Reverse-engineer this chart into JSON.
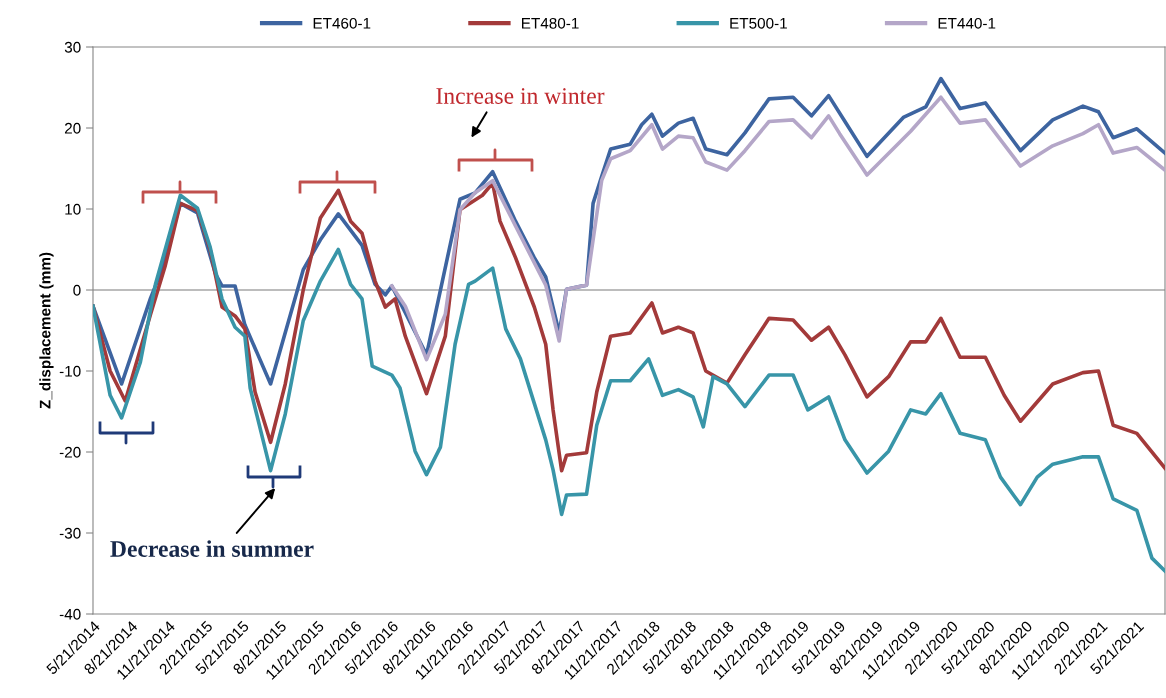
{
  "chart_data": {
    "type": "line",
    "ylabel": "Z_displacement (mm)",
    "ylim": [
      -40,
      30
    ],
    "yticks": [
      -40,
      -30,
      -20,
      -10,
      0,
      10,
      20,
      30
    ],
    "xlim": [
      "2014-05-21",
      "2021-07-29"
    ],
    "xticks": [
      {
        "value": "2014-05-21",
        "label": "5/21/2014"
      },
      {
        "value": "2014-08-21",
        "label": "8/21/2014"
      },
      {
        "value": "2014-11-21",
        "label": "11/21/2014"
      },
      {
        "value": "2015-02-21",
        "label": "2/21/2015"
      },
      {
        "value": "2015-05-21",
        "label": "5/21/2015"
      },
      {
        "value": "2015-08-21",
        "label": "8/21/2015"
      },
      {
        "value": "2015-11-21",
        "label": "11/21/2015"
      },
      {
        "value": "2016-02-21",
        "label": "2/21/2016"
      },
      {
        "value": "2016-05-21",
        "label": "5/21/2016"
      },
      {
        "value": "2016-08-21",
        "label": "8/21/2016"
      },
      {
        "value": "2016-11-21",
        "label": "11/21/2016"
      },
      {
        "value": "2017-02-21",
        "label": "2/21/2017"
      },
      {
        "value": "2017-05-21",
        "label": "5/21/2017"
      },
      {
        "value": "2017-08-21",
        "label": "8/21/2017"
      },
      {
        "value": "2017-11-21",
        "label": "11/21/2017"
      },
      {
        "value": "2018-02-21",
        "label": "2/21/2018"
      },
      {
        "value": "2018-05-21",
        "label": "5/21/2018"
      },
      {
        "value": "2018-08-21",
        "label": "8/21/2018"
      },
      {
        "value": "2018-11-21",
        "label": "11/21/2018"
      },
      {
        "value": "2019-02-21",
        "label": "2/21/2019"
      },
      {
        "value": "2019-05-21",
        "label": "5/21/2019"
      },
      {
        "value": "2019-08-21",
        "label": "8/21/2019"
      },
      {
        "value": "2019-11-21",
        "label": "11/21/2019"
      },
      {
        "value": "2020-02-21",
        "label": "2/21/2020"
      },
      {
        "value": "2020-05-21",
        "label": "5/21/2020"
      },
      {
        "value": "2020-08-21",
        "label": "8/21/2020"
      },
      {
        "value": "2020-11-21",
        "label": "11/21/2020"
      },
      {
        "value": "2021-02-21",
        "label": "2/21/2021"
      },
      {
        "value": "2021-05-21",
        "label": "5/21/2021"
      }
    ],
    "ref_lines": [
      {
        "axis": "y",
        "value": 0,
        "color": "#a6a6a6"
      }
    ],
    "legend": "top",
    "grid": false,
    "marker": "none",
    "line_style": "solid",
    "annotations": [
      "Increase in winter",
      "Decrease in summer"
    ],
    "series": [
      {
        "name": "ET460-1",
        "color": "#3d64a0",
        "x": [
          "2014-05-21",
          "2014-07-30",
          "2014-10-09",
          "2014-11-02",
          "2014-12-21",
          "2015-02-01",
          "2015-03-17",
          "2015-04-02",
          "2015-05-04",
          "2015-05-28",
          "2015-07-30",
          "2015-10-18",
          "2015-11-29",
          "2016-01-12",
          "2016-03-10",
          "2016-04-11",
          "2016-05-06",
          "2016-05-22",
          "2016-08-15",
          "2016-11-05",
          "2016-12-12",
          "2017-01-24",
          "2017-03-21",
          "2017-05-06",
          "2017-06-03",
          "2017-07-06",
          "2017-07-24",
          "2017-09-11",
          "2017-09-27",
          "2017-10-18",
          "2017-11-09",
          "2017-12-27",
          "2018-01-24",
          "2018-02-18",
          "2018-03-16",
          "2018-04-24",
          "2018-05-30",
          "2018-06-30",
          "2018-08-21",
          "2018-10-04",
          "2018-12-02",
          "2019-01-30",
          "2019-03-16",
          "2019-04-27",
          "2019-06-06",
          "2019-07-30",
          "2019-10-27",
          "2019-12-21",
          "2020-01-27",
          "2020-03-14",
          "2020-05-15",
          "2020-08-09",
          "2020-10-27",
          "2021-01-09",
          "2021-02-16",
          "2021-03-24",
          "2021-05-21",
          "2021-07-29"
        ],
        "values": [
          -2,
          -11.6,
          -1,
          2,
          10.7,
          9.5,
          2,
          0.5,
          0.5,
          -4.3,
          -11.6,
          2.5,
          6.2,
          9.4,
          5.5,
          0.7,
          -0.6,
          0.5,
          -8,
          11.2,
          12,
          14.6,
          8.5,
          4,
          1.6,
          -5.3,
          0.1,
          0.6,
          10.7,
          14,
          17.4,
          18,
          20.4,
          21.7,
          19,
          20.6,
          21.2,
          17.4,
          16.7,
          19.4,
          23.6,
          23.8,
          21.5,
          24,
          20.8,
          16.5,
          21.3,
          22.6,
          26.1,
          22.4,
          23.1,
          17.2,
          21,
          22.7,
          22,
          18.8,
          19.9,
          16.9
        ]
      },
      {
        "name": "ET480-1",
        "color": "#a33a3a",
        "x": [
          "2014-05-21",
          "2014-07-02",
          "2014-08-08",
          "2014-10-09",
          "2014-11-14",
          "2014-12-21",
          "2015-02-01",
          "2015-03-04",
          "2015-04-02",
          "2015-05-04",
          "2015-05-28",
          "2015-06-22",
          "2015-07-30",
          "2015-09-04",
          "2015-10-18",
          "2015-11-29",
          "2016-01-12",
          "2016-02-11",
          "2016-03-10",
          "2016-04-11",
          "2016-05-06",
          "2016-05-30",
          "2016-06-24",
          "2016-08-15",
          "2016-09-30",
          "2016-11-05",
          "2016-12-30",
          "2017-01-24",
          "2017-02-11",
          "2017-03-21",
          "2017-05-06",
          "2017-06-03",
          "2017-06-21",
          "2017-07-12",
          "2017-07-24",
          "2017-09-11",
          "2017-10-06",
          "2017-11-09",
          "2017-12-27",
          "2018-02-18",
          "2018-03-16",
          "2018-04-24",
          "2018-05-30",
          "2018-06-30",
          "2018-08-21",
          "2018-10-04",
          "2018-12-02",
          "2019-01-30",
          "2019-03-16",
          "2019-04-27",
          "2019-06-06",
          "2019-07-30",
          "2019-09-21",
          "2019-11-14",
          "2019-12-21",
          "2020-01-27",
          "2020-03-14",
          "2020-05-15",
          "2020-06-30",
          "2020-08-09",
          "2020-10-27",
          "2021-01-09",
          "2021-02-16",
          "2021-03-24",
          "2021-05-21",
          "2021-07-29"
        ],
        "values": [
          -2,
          -10,
          -13.7,
          -3,
          3,
          10.7,
          9.8,
          5,
          -2.1,
          -3.2,
          -4.8,
          -12.6,
          -18.8,
          -11.6,
          0,
          8.9,
          12.3,
          8.5,
          7,
          1.1,
          -2.1,
          -1.1,
          -5.7,
          -12.8,
          -5.7,
          9.9,
          11.7,
          13.2,
          8.5,
          4,
          -2.1,
          -6.7,
          -14.8,
          -22.3,
          -20.4,
          -20.1,
          -12.6,
          -5.7,
          -5.3,
          -1.6,
          -5.3,
          -4.6,
          -5.3,
          -10,
          -11.5,
          -8,
          -3.5,
          -3.7,
          -6.2,
          -4.6,
          -8,
          -13.2,
          -10.7,
          -6.4,
          -6.4,
          -3.5,
          -8.3,
          -8.3,
          -13,
          -16.2,
          -11.6,
          -10.2,
          -10,
          -16.7,
          -17.7,
          -22
        ]
      },
      {
        "name": "ET500-1",
        "color": "#3895a8",
        "x": [
          "2014-05-21",
          "2014-07-02",
          "2014-07-30",
          "2014-09-14",
          "2014-10-21",
          "2014-12-21",
          "2015-02-01",
          "2015-03-04",
          "2015-04-02",
          "2015-05-04",
          "2015-05-28",
          "2015-06-10",
          "2015-07-30",
          "2015-09-04",
          "2015-10-18",
          "2015-11-29",
          "2016-01-12",
          "2016-02-11",
          "2016-03-10",
          "2016-04-04",
          "2016-05-22",
          "2016-06-11",
          "2016-07-18",
          "2016-08-15",
          "2016-09-18",
          "2016-10-24",
          "2016-11-26",
          "2016-12-12",
          "2017-01-24",
          "2017-02-25",
          "2017-04-02",
          "2017-05-06",
          "2017-06-03",
          "2017-06-21",
          "2017-07-12",
          "2017-07-24",
          "2017-09-11",
          "2017-10-06",
          "2017-11-09",
          "2017-12-27",
          "2018-02-10",
          "2018-03-16",
          "2018-04-24",
          "2018-05-30",
          "2018-06-24",
          "2018-07-18",
          "2018-08-21",
          "2018-10-04",
          "2018-12-02",
          "2019-01-30",
          "2019-03-07",
          "2019-04-27",
          "2019-06-06",
          "2019-07-30",
          "2019-09-21",
          "2019-11-14",
          "2019-12-21",
          "2020-01-27",
          "2020-03-14",
          "2020-05-15",
          "2020-06-21",
          "2020-08-09",
          "2020-09-19",
          "2020-10-27",
          "2021-01-09",
          "2021-02-16",
          "2021-03-24",
          "2021-05-21",
          "2021-06-27",
          "2021-07-29"
        ],
        "values": [
          -2,
          -13,
          -15.8,
          -8.9,
          0.7,
          11.7,
          10.1,
          5.3,
          -1.1,
          -4.6,
          -5.7,
          -12.1,
          -22.3,
          -15.3,
          -3.8,
          1.1,
          5,
          0.7,
          -1.1,
          -9.4,
          -10.5,
          -12.1,
          -19.9,
          -22.8,
          -19.4,
          -6.7,
          0.7,
          1.1,
          2.7,
          -4.8,
          -8.5,
          -14,
          -18.5,
          -22.2,
          -27.7,
          -25.3,
          -25.2,
          -16.7,
          -11.2,
          -11.2,
          -8.5,
          -13,
          -12.3,
          -13.2,
          -16.9,
          -10.7,
          -11.6,
          -14.4,
          -10.5,
          -10.5,
          -14.8,
          -13.2,
          -18.5,
          -22.6,
          -19.9,
          -14.8,
          -15.3,
          -12.8,
          -17.7,
          -18.5,
          -23.1,
          -26.5,
          -23.1,
          -21.5,
          -20.6,
          -20.6,
          -25.8,
          -27.2,
          -33.1,
          -34.7
        ]
      },
      {
        "name": "ET440-1",
        "color": "#b4a6c8",
        "x": [
          "2016-05-22",
          "2016-06-24",
          "2016-08-15",
          "2016-09-30",
          "2016-11-05",
          "2016-12-12",
          "2017-01-24",
          "2017-03-21",
          "2017-06-03",
          "2017-07-06",
          "2017-07-24",
          "2017-09-11",
          "2017-10-18",
          "2017-11-09",
          "2017-12-27",
          "2018-02-18",
          "2018-03-16",
          "2018-04-24",
          "2018-05-30",
          "2018-06-30",
          "2018-08-21",
          "2018-10-04",
          "2018-12-02",
          "2019-01-30",
          "2019-03-16",
          "2019-04-27",
          "2019-05-24",
          "2019-07-30",
          "2019-11-14",
          "2020-01-27",
          "2020-03-14",
          "2020-05-15",
          "2020-08-09",
          "2020-10-27",
          "2021-01-09",
          "2021-02-16",
          "2021-03-24",
          "2021-05-21",
          "2021-07-29"
        ],
        "values": [
          0.5,
          -2,
          -8.6,
          -3,
          9.9,
          12,
          13.5,
          7.9,
          0.6,
          -6.3,
          0.1,
          0.6,
          13.5,
          16.2,
          17.2,
          20.4,
          17.4,
          19,
          18.8,
          15.8,
          14.8,
          17.2,
          20.8,
          21,
          18.8,
          21.5,
          19.3,
          14.2,
          19.6,
          23.8,
          20.6,
          21,
          15.3,
          17.8,
          19.3,
          20.4,
          16.9,
          17.6,
          14.8
        ]
      }
    ]
  }
}
